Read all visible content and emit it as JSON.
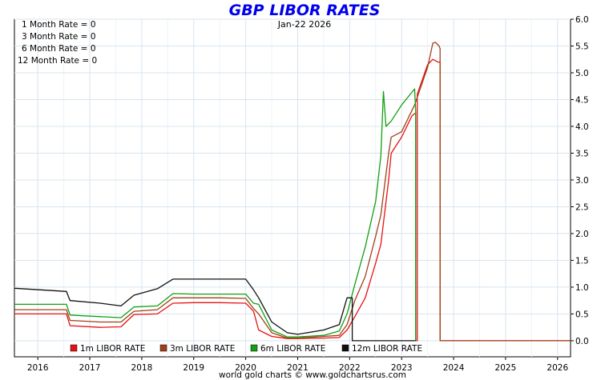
{
  "chart_data": {
    "type": "line",
    "title": "GBP LIBOR RATES",
    "date_label": "Jan-22  2026",
    "source": "world gold charts © www.goldchartsrus.com",
    "current_rates": [
      "1 Month Rate = 0",
      "3 Month Rate = 0",
      "6 Month Rate = 0",
      "12 Month Rate = 0"
    ],
    "x_range": [
      2015.55,
      2026.25
    ],
    "ylim": [
      -0.3,
      6.0
    ],
    "y_ticks": [
      0.0,
      0.5,
      1.0,
      1.5,
      2.0,
      2.5,
      3.0,
      3.5,
      4.0,
      4.5,
      5.0,
      5.5,
      6.0
    ],
    "y_tick_labels": [
      "0.0",
      "0.5",
      "1.0",
      "1.5",
      "2.0",
      "2.5",
      "3.0",
      "3.5",
      "4.0",
      "4.5",
      "5.0",
      "5.5",
      "6.0"
    ],
    "x_ticks": [
      2016,
      2017,
      2018,
      2019,
      2020,
      2021,
      2022,
      2023,
      2024,
      2025,
      2026
    ],
    "x_tick_labels": [
      "2016",
      "2017",
      "2018",
      "2019",
      "2020",
      "2021",
      "2022",
      "2023",
      "2024",
      "2025",
      "2026"
    ],
    "grid": true,
    "legend_position": "bottom",
    "series": [
      {
        "name": "1m LIBOR RATE",
        "color": "#e81010",
        "points": [
          [
            2015.55,
            0.5
          ],
          [
            2016.55,
            0.5
          ],
          [
            2016.62,
            0.28
          ],
          [
            2017.2,
            0.25
          ],
          [
            2017.6,
            0.26
          ],
          [
            2017.85,
            0.49
          ],
          [
            2018.3,
            0.5
          ],
          [
            2018.6,
            0.7
          ],
          [
            2019.0,
            0.71
          ],
          [
            2019.5,
            0.71
          ],
          [
            2020.0,
            0.7
          ],
          [
            2020.15,
            0.55
          ],
          [
            2020.25,
            0.2
          ],
          [
            2020.5,
            0.08
          ],
          [
            2020.8,
            0.04
          ],
          [
            2021.0,
            0.04
          ],
          [
            2021.5,
            0.05
          ],
          [
            2021.8,
            0.06
          ],
          [
            2021.95,
            0.2
          ],
          [
            2022.1,
            0.45
          ],
          [
            2022.3,
            0.8
          ],
          [
            2022.5,
            1.45
          ],
          [
            2022.6,
            1.8
          ],
          [
            2022.75,
            3.0
          ],
          [
            2022.8,
            3.5
          ],
          [
            2023.0,
            3.8
          ],
          [
            2023.2,
            4.2
          ],
          [
            2023.27,
            4.25
          ],
          [
            2023.27,
            0.0
          ],
          [
            2023.3,
            0.0
          ],
          [
            2023.3,
            4.6
          ],
          [
            2023.5,
            5.15
          ],
          [
            2023.6,
            5.25
          ],
          [
            2023.7,
            5.2
          ],
          [
            2023.74,
            5.2
          ],
          [
            2023.74,
            0.0
          ],
          [
            2026.25,
            0.0
          ]
        ]
      },
      {
        "name": "3m LIBOR RATE",
        "color": "#a0401a",
        "points": [
          [
            2015.55,
            0.58
          ],
          [
            2016.55,
            0.58
          ],
          [
            2016.62,
            0.38
          ],
          [
            2017.2,
            0.35
          ],
          [
            2017.6,
            0.35
          ],
          [
            2017.85,
            0.55
          ],
          [
            2018.3,
            0.58
          ],
          [
            2018.6,
            0.8
          ],
          [
            2019.0,
            0.8
          ],
          [
            2019.5,
            0.8
          ],
          [
            2020.0,
            0.79
          ],
          [
            2020.15,
            0.6
          ],
          [
            2020.25,
            0.5
          ],
          [
            2020.5,
            0.15
          ],
          [
            2020.8,
            0.05
          ],
          [
            2021.0,
            0.05
          ],
          [
            2021.5,
            0.08
          ],
          [
            2021.8,
            0.1
          ],
          [
            2021.95,
            0.3
          ],
          [
            2022.1,
            0.75
          ],
          [
            2022.3,
            1.2
          ],
          [
            2022.5,
            1.95
          ],
          [
            2022.6,
            2.35
          ],
          [
            2022.75,
            3.5
          ],
          [
            2022.8,
            3.8
          ],
          [
            2023.0,
            3.9
          ],
          [
            2023.25,
            4.4
          ],
          [
            2023.5,
            5.1
          ],
          [
            2023.6,
            5.55
          ],
          [
            2023.65,
            5.57
          ],
          [
            2023.72,
            5.5
          ],
          [
            2023.74,
            5.45
          ],
          [
            2023.74,
            0.0
          ],
          [
            2026.25,
            0.0
          ]
        ]
      },
      {
        "name": "6m LIBOR RATE",
        "color": "#10a010",
        "points": [
          [
            2015.55,
            0.68
          ],
          [
            2016.55,
            0.68
          ],
          [
            2016.62,
            0.48
          ],
          [
            2017.2,
            0.45
          ],
          [
            2017.6,
            0.43
          ],
          [
            2017.85,
            0.63
          ],
          [
            2018.3,
            0.65
          ],
          [
            2018.6,
            0.88
          ],
          [
            2019.0,
            0.87
          ],
          [
            2019.5,
            0.87
          ],
          [
            2020.0,
            0.87
          ],
          [
            2020.15,
            0.7
          ],
          [
            2020.25,
            0.68
          ],
          [
            2020.5,
            0.2
          ],
          [
            2020.8,
            0.07
          ],
          [
            2021.0,
            0.07
          ],
          [
            2021.5,
            0.1
          ],
          [
            2021.8,
            0.18
          ],
          [
            2021.95,
            0.5
          ],
          [
            2022.1,
            1.05
          ],
          [
            2022.3,
            1.75
          ],
          [
            2022.5,
            2.6
          ],
          [
            2022.6,
            3.45
          ],
          [
            2022.65,
            4.65
          ],
          [
            2022.7,
            4.0
          ],
          [
            2022.8,
            4.1
          ],
          [
            2023.0,
            4.4
          ],
          [
            2023.25,
            4.7
          ],
          [
            2023.27,
            4.3
          ],
          [
            2023.27,
            0.0
          ]
        ]
      },
      {
        "name": "12m LIBOR RATE",
        "color": "#101010",
        "points": [
          [
            2015.55,
            0.98
          ],
          [
            2016.55,
            0.92
          ],
          [
            2016.62,
            0.75
          ],
          [
            2017.2,
            0.7
          ],
          [
            2017.6,
            0.65
          ],
          [
            2017.85,
            0.85
          ],
          [
            2018.3,
            0.97
          ],
          [
            2018.6,
            1.15
          ],
          [
            2019.0,
            1.15
          ],
          [
            2019.5,
            1.15
          ],
          [
            2020.0,
            1.15
          ],
          [
            2020.15,
            0.95
          ],
          [
            2020.25,
            0.8
          ],
          [
            2020.5,
            0.35
          ],
          [
            2020.8,
            0.15
          ],
          [
            2021.0,
            0.12
          ],
          [
            2021.5,
            0.2
          ],
          [
            2021.8,
            0.3
          ],
          [
            2021.95,
            0.8
          ],
          [
            2022.05,
            0.8
          ],
          [
            2022.05,
            0.0
          ],
          [
            2023.27,
            0.0
          ]
        ]
      }
    ]
  }
}
